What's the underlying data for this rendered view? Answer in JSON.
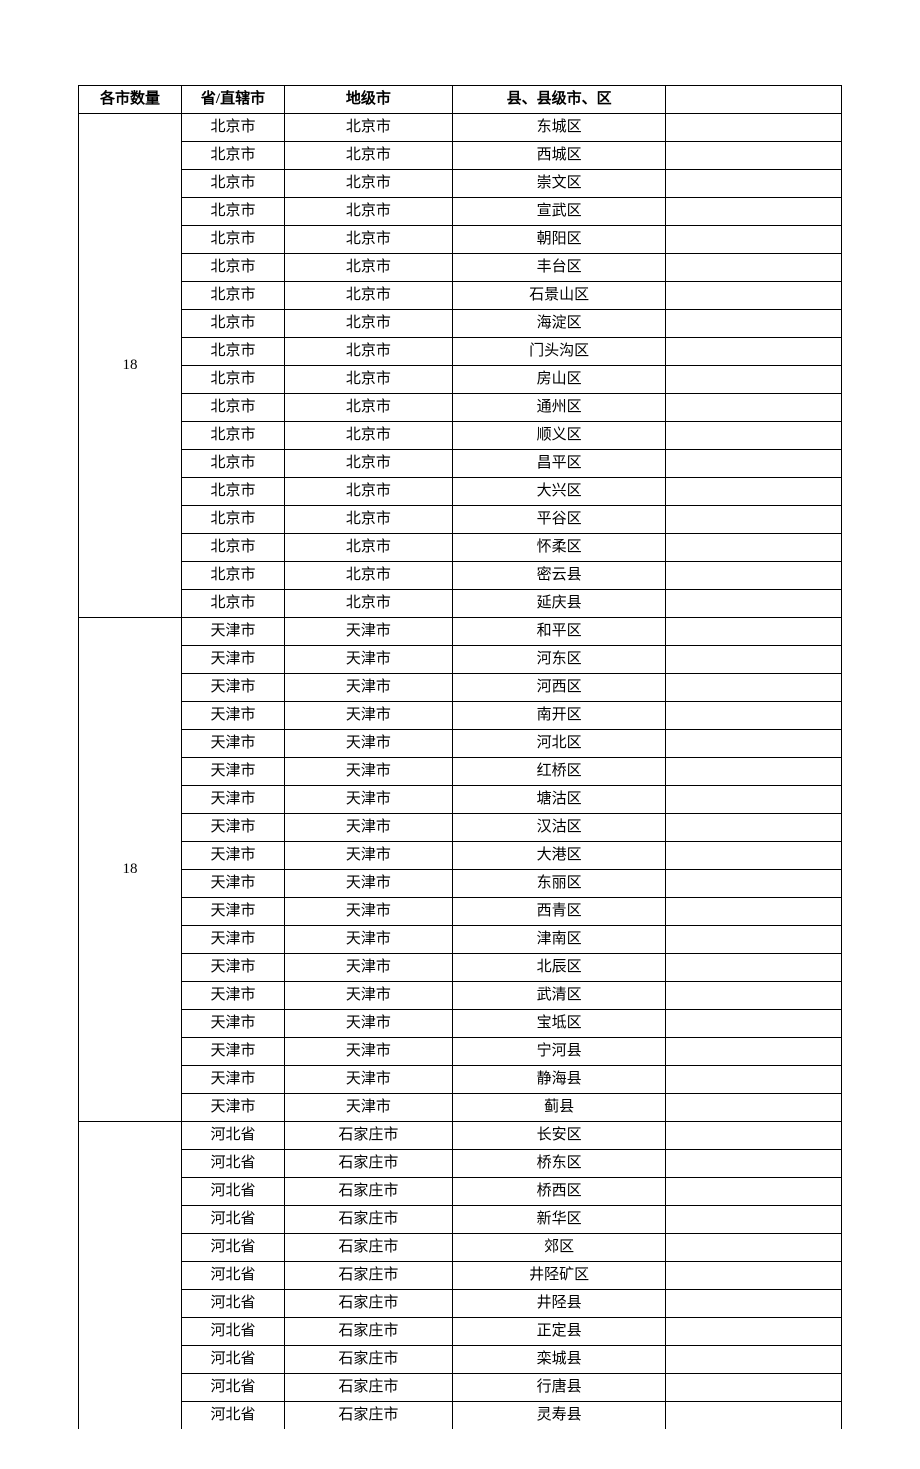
{
  "headers": {
    "col1": "各市数量",
    "col2": "省/直辖市",
    "col3": "地级市",
    "col4": "县、县级市、区",
    "col5": ""
  },
  "groups": [
    {
      "count": "18",
      "rows": [
        {
          "province": "北京市",
          "city": "北京市",
          "district": "东城区"
        },
        {
          "province": "北京市",
          "city": "北京市",
          "district": "西城区"
        },
        {
          "province": "北京市",
          "city": "北京市",
          "district": "崇文区"
        },
        {
          "province": "北京市",
          "city": "北京市",
          "district": "宣武区"
        },
        {
          "province": "北京市",
          "city": "北京市",
          "district": "朝阳区"
        },
        {
          "province": "北京市",
          "city": "北京市",
          "district": "丰台区"
        },
        {
          "province": "北京市",
          "city": "北京市",
          "district": "石景山区"
        },
        {
          "province": "北京市",
          "city": "北京市",
          "district": "海淀区"
        },
        {
          "province": "北京市",
          "city": "北京市",
          "district": "门头沟区"
        },
        {
          "province": "北京市",
          "city": "北京市",
          "district": "房山区"
        },
        {
          "province": "北京市",
          "city": "北京市",
          "district": "通州区"
        },
        {
          "province": "北京市",
          "city": "北京市",
          "district": "顺义区"
        },
        {
          "province": "北京市",
          "city": "北京市",
          "district": "昌平区"
        },
        {
          "province": "北京市",
          "city": "北京市",
          "district": "大兴区"
        },
        {
          "province": "北京市",
          "city": "北京市",
          "district": "平谷区"
        },
        {
          "province": "北京市",
          "city": "北京市",
          "district": "怀柔区"
        },
        {
          "province": "北京市",
          "city": "北京市",
          "district": "密云县"
        },
        {
          "province": "北京市",
          "city": "北京市",
          "district": "延庆县"
        }
      ]
    },
    {
      "count": "18",
      "rows": [
        {
          "province": "天津市",
          "city": "天津市",
          "district": "和平区"
        },
        {
          "province": "天津市",
          "city": "天津市",
          "district": "河东区"
        },
        {
          "province": "天津市",
          "city": "天津市",
          "district": "河西区"
        },
        {
          "province": "天津市",
          "city": "天津市",
          "district": "南开区"
        },
        {
          "province": "天津市",
          "city": "天津市",
          "district": "河北区"
        },
        {
          "province": "天津市",
          "city": "天津市",
          "district": "红桥区"
        },
        {
          "province": "天津市",
          "city": "天津市",
          "district": "塘沽区"
        },
        {
          "province": "天津市",
          "city": "天津市",
          "district": "汉沽区"
        },
        {
          "province": "天津市",
          "city": "天津市",
          "district": "大港区"
        },
        {
          "province": "天津市",
          "city": "天津市",
          "district": "东丽区"
        },
        {
          "province": "天津市",
          "city": "天津市",
          "district": "西青区"
        },
        {
          "province": "天津市",
          "city": "天津市",
          "district": "津南区"
        },
        {
          "province": "天津市",
          "city": "天津市",
          "district": "北辰区"
        },
        {
          "province": "天津市",
          "city": "天津市",
          "district": "武清区"
        },
        {
          "province": "天津市",
          "city": "天津市",
          "district": "宝坻区"
        },
        {
          "province": "天津市",
          "city": "天津市",
          "district": "宁河县"
        },
        {
          "province": "天津市",
          "city": "天津市",
          "district": "静海县"
        },
        {
          "province": "天津市",
          "city": "天津市",
          "district": "蓟县"
        }
      ]
    },
    {
      "count": "",
      "openBottom": true,
      "rows": [
        {
          "province": "河北省",
          "city": "石家庄市",
          "district": "长安区"
        },
        {
          "province": "河北省",
          "city": "石家庄市",
          "district": "桥东区"
        },
        {
          "province": "河北省",
          "city": "石家庄市",
          "district": "桥西区"
        },
        {
          "province": "河北省",
          "city": "石家庄市",
          "district": "新华区"
        },
        {
          "province": "河北省",
          "city": "石家庄市",
          "district": "郊区"
        },
        {
          "province": "河北省",
          "city": "石家庄市",
          "district": "井陉矿区"
        },
        {
          "province": "河北省",
          "city": "石家庄市",
          "district": "井陉县"
        },
        {
          "province": "河北省",
          "city": "石家庄市",
          "district": "正定县"
        },
        {
          "province": "河北省",
          "city": "石家庄市",
          "district": "栾城县"
        },
        {
          "province": "河北省",
          "city": "石家庄市",
          "district": "行唐县"
        },
        {
          "province": "河北省",
          "city": "石家庄市",
          "district": "灵寿县"
        }
      ]
    }
  ]
}
